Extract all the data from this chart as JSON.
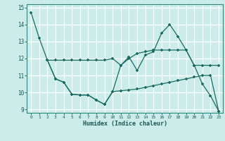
{
  "xlabel": "Humidex (Indice chaleur)",
  "background_color": "#ccecea",
  "grid_color": "#ffffff",
  "line_color": "#1a6b62",
  "xlim": [
    -0.5,
    23.5
  ],
  "ylim": [
    8.8,
    15.2
  ],
  "yticks": [
    9,
    10,
    11,
    12,
    13,
    14,
    15
  ],
  "xticks": [
    0,
    1,
    2,
    3,
    4,
    5,
    6,
    7,
    8,
    9,
    10,
    11,
    12,
    13,
    14,
    15,
    16,
    17,
    18,
    19,
    20,
    21,
    22,
    23
  ],
  "line1_x": [
    0,
    1,
    2
  ],
  "line1_y": [
    14.7,
    13.2,
    11.9
  ],
  "line2_x": [
    2,
    3,
    4,
    5,
    6,
    7,
    8,
    9,
    10,
    11,
    12,
    13,
    14,
    15,
    16,
    17,
    18,
    19,
    20,
    21,
    22,
    23
  ],
  "line2_y": [
    11.9,
    10.8,
    10.6,
    9.9,
    9.85,
    9.85,
    9.55,
    9.3,
    10.05,
    11.6,
    12.1,
    11.3,
    12.2,
    12.4,
    13.5,
    14.0,
    13.3,
    12.5,
    11.6,
    10.5,
    9.8,
    8.9
  ],
  "line3_x": [
    2,
    3,
    4,
    5,
    6,
    7,
    8,
    9,
    10,
    11,
    12,
    13,
    14,
    15,
    16,
    17,
    18,
    19,
    20,
    21,
    22,
    23
  ],
  "line3_y": [
    11.9,
    11.9,
    11.9,
    11.9,
    11.9,
    11.9,
    11.9,
    11.9,
    12.0,
    11.6,
    12.0,
    12.3,
    12.4,
    12.5,
    12.5,
    12.5,
    12.5,
    12.5,
    11.6,
    11.6,
    11.6,
    11.6
  ],
  "line4_x": [
    2,
    3,
    4,
    5,
    6,
    7,
    8,
    9,
    10,
    11,
    12,
    13,
    14,
    15,
    16,
    17,
    18,
    19,
    20,
    21,
    22,
    23
  ],
  "line4_y": [
    11.9,
    10.8,
    10.6,
    9.9,
    9.85,
    9.85,
    9.55,
    9.3,
    10.05,
    10.1,
    10.15,
    10.2,
    10.3,
    10.4,
    10.5,
    10.6,
    10.7,
    10.8,
    10.9,
    11.0,
    11.0,
    8.9
  ]
}
